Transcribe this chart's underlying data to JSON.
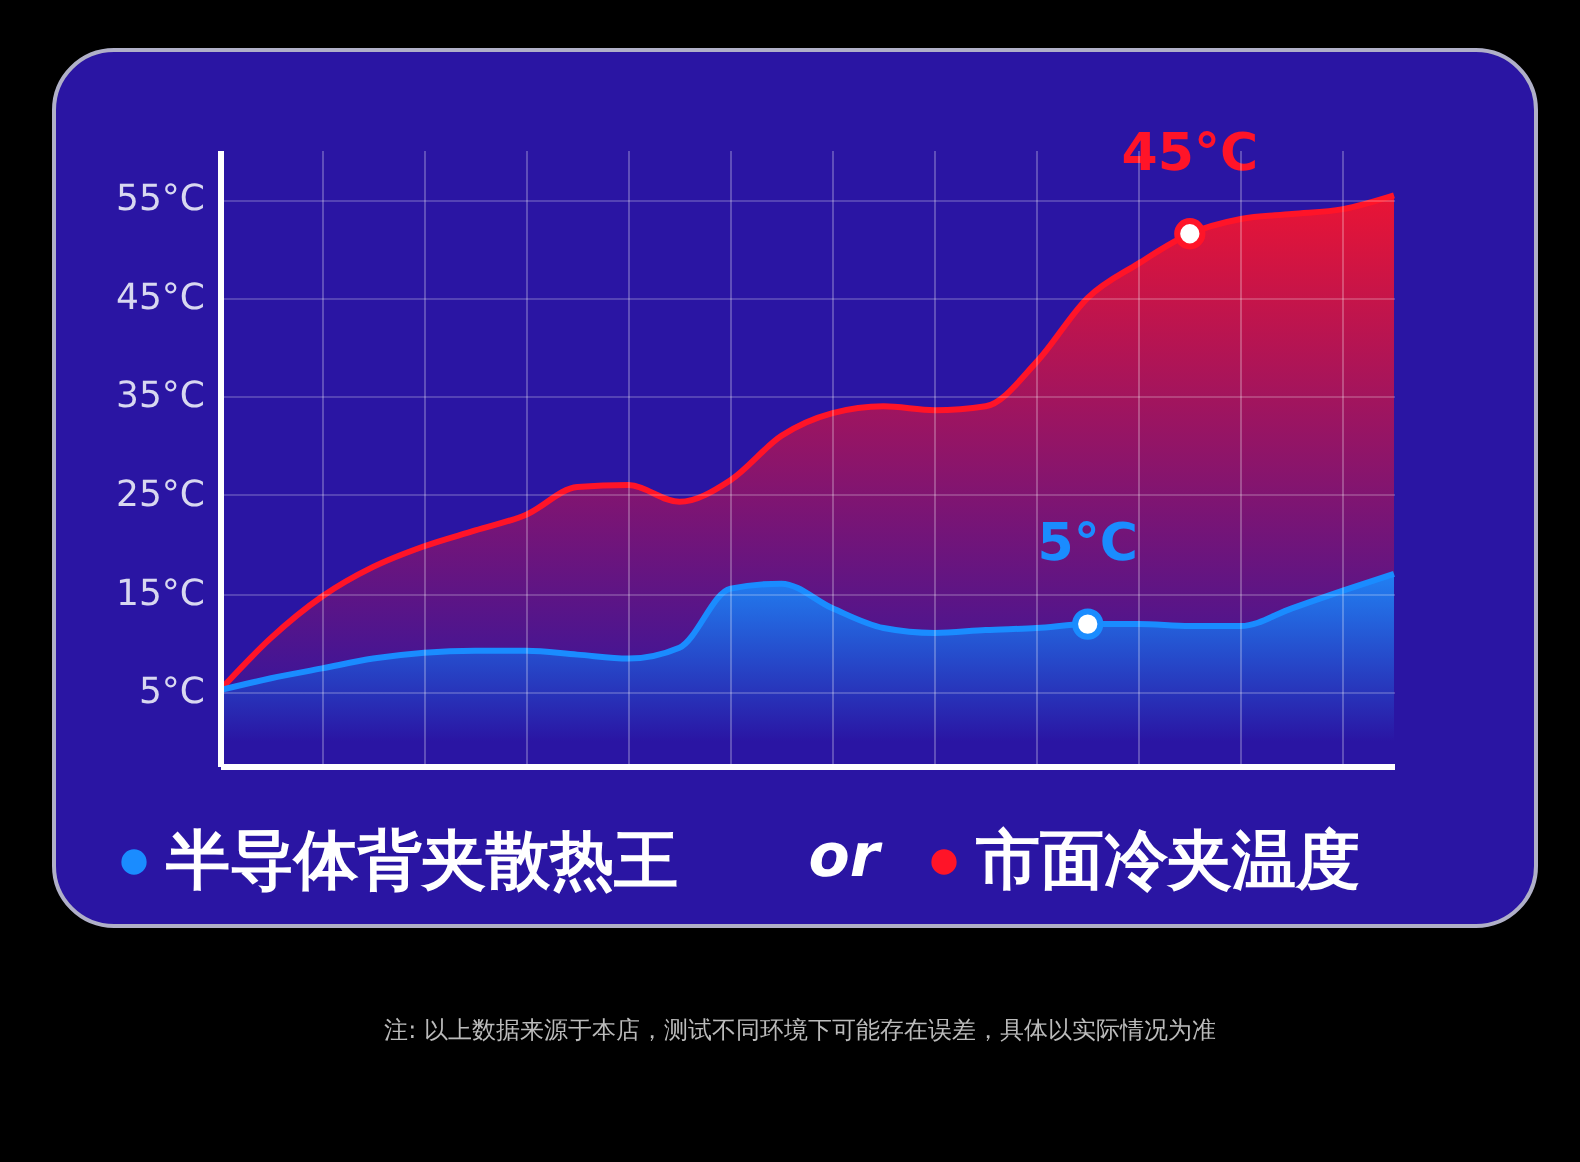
{
  "chart_data": {
    "type": "area",
    "categories": [
      null,
      null,
      null,
      null,
      null,
      null,
      null,
      null,
      null,
      null,
      null,
      null,
      null,
      null,
      null,
      null,
      null,
      null,
      null,
      null,
      null,
      null,
      null,
      null
    ],
    "series": [
      {
        "name": "半导体背夹散热王",
        "color": "#1a8cff",
        "values": [
          5.2,
          6.4,
          7.4,
          8.4,
          9,
          9.2,
          9.2,
          8.8,
          8.4,
          9.5,
          15.5,
          16,
          13.5,
          11.5,
          11,
          11.3,
          11.5,
          11.9,
          11.9,
          11.7,
          11.7,
          13.5,
          15.3,
          17
        ]
      },
      {
        "name": "市面冷夹温度",
        "color": "#ff1428",
        "values": [
          5.2,
          10.5,
          14.7,
          17.7,
          19.8,
          21.4,
          23,
          25.8,
          26,
          24.3,
          26.5,
          31,
          33.3,
          34,
          33.6,
          34,
          38.5,
          45,
          48.5,
          51.5,
          53,
          53.5,
          54,
          55.4
        ]
      }
    ],
    "ylim": [
      -2.5,
      60
    ],
    "yticks": [
      {
        "value": 5,
        "label": "5°C"
      },
      {
        "value": 15,
        "label": "15°C"
      },
      {
        "value": 25,
        "label": "25°C"
      },
      {
        "value": 35,
        "label": "35°C"
      },
      {
        "value": 45,
        "label": "45°C"
      },
      {
        "value": 55,
        "label": "55°C"
      }
    ],
    "grid": true,
    "legend": "bottom",
    "tick_labels": "y",
    "annotations": [
      {
        "text": "45°C",
        "y": 51.5
      },
      {
        "text": "5°C",
        "y": 11.9
      },
      "or",
      "注: 以上数据来源于本店，测试不同环境下可能存在误差，具体以实际情况为准"
    ]
  }
}
